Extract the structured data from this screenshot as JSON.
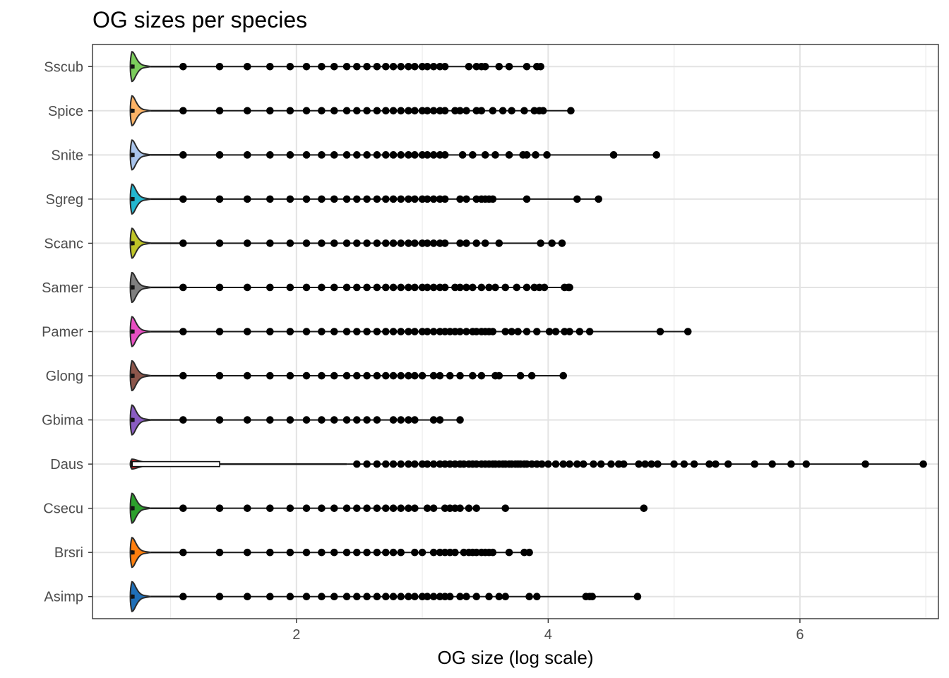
{
  "chart_data": {
    "type": "violin-boxplot",
    "title": "OG sizes per species",
    "xlabel": "OG size (log scale)",
    "ylabel": "",
    "xlim": [
      0.38,
      7.1
    ],
    "x_ticks": [
      2,
      4,
      6
    ],
    "x_tick_labels": [
      "2",
      "4",
      "6"
    ],
    "grid": true,
    "legend": "none",
    "categories": [
      "Sscub",
      "Spice",
      "Snite",
      "Sgreg",
      "Scanc",
      "Samer",
      "Pamer",
      "Glong",
      "Gbima",
      "Daus",
      "Csecu",
      "Brsri",
      "Asimp"
    ],
    "series": [
      {
        "name": "Sscub",
        "color": "#7CCD5C",
        "box_q3": 0.69,
        "whisker_max": 1.1,
        "outliers": [
          1.1,
          1.39,
          1.61,
          1.79,
          1.95,
          2.08,
          2.2,
          2.3,
          2.4,
          2.48,
          2.56,
          2.64,
          2.71,
          2.77,
          2.83,
          2.89,
          2.94,
          3.0,
          3.04,
          3.09,
          3.14,
          3.18,
          3.37,
          3.43,
          3.47,
          3.5,
          3.61,
          3.69,
          3.83,
          3.91,
          3.94
        ]
      },
      {
        "name": "Spice",
        "color": "#FDB366",
        "box_q3": 0.69,
        "whisker_max": 1.1,
        "outliers": [
          1.1,
          1.39,
          1.61,
          1.79,
          1.95,
          2.08,
          2.2,
          2.3,
          2.4,
          2.48,
          2.56,
          2.64,
          2.71,
          2.77,
          2.83,
          2.89,
          2.94,
          3.0,
          3.04,
          3.09,
          3.14,
          3.18,
          3.26,
          3.3,
          3.35,
          3.43,
          3.47,
          3.56,
          3.64,
          3.71,
          3.81,
          3.89,
          3.93,
          3.96,
          4.18
        ]
      },
      {
        "name": "Snite",
        "color": "#A9C4EB",
        "box_q3": 0.69,
        "whisker_max": 1.1,
        "outliers": [
          1.1,
          1.39,
          1.61,
          1.79,
          1.95,
          2.08,
          2.2,
          2.3,
          2.4,
          2.48,
          2.56,
          2.64,
          2.71,
          2.77,
          2.83,
          2.89,
          2.94,
          3.0,
          3.04,
          3.09,
          3.14,
          3.18,
          3.32,
          3.4,
          3.5,
          3.58,
          3.69,
          3.8,
          3.83,
          3.9,
          3.99,
          4.52,
          4.86
        ]
      },
      {
        "name": "Sgreg",
        "color": "#23B7D0",
        "box_q3": 0.69,
        "whisker_max": 1.1,
        "outliers": [
          1.1,
          1.39,
          1.61,
          1.79,
          1.95,
          2.08,
          2.2,
          2.3,
          2.4,
          2.48,
          2.56,
          2.64,
          2.71,
          2.77,
          2.83,
          2.89,
          2.94,
          3.0,
          3.04,
          3.09,
          3.14,
          3.18,
          3.3,
          3.35,
          3.43,
          3.47,
          3.5,
          3.53,
          3.56,
          3.83,
          4.23,
          4.4
        ]
      },
      {
        "name": "Scanc",
        "color": "#BFC427",
        "box_q3": 0.69,
        "whisker_max": 1.1,
        "outliers": [
          1.1,
          1.39,
          1.61,
          1.79,
          1.95,
          2.08,
          2.2,
          2.3,
          2.4,
          2.48,
          2.56,
          2.64,
          2.71,
          2.77,
          2.83,
          2.89,
          2.94,
          3.0,
          3.04,
          3.09,
          3.14,
          3.18,
          3.3,
          3.35,
          3.43,
          3.5,
          3.61,
          3.94,
          4.03,
          4.11
        ]
      },
      {
        "name": "Samer",
        "color": "#7F7F7F",
        "box_q3": 0.69,
        "whisker_max": 1.1,
        "outliers": [
          1.1,
          1.39,
          1.61,
          1.79,
          1.95,
          2.08,
          2.2,
          2.3,
          2.4,
          2.48,
          2.56,
          2.64,
          2.71,
          2.77,
          2.83,
          2.89,
          2.94,
          3.0,
          3.04,
          3.09,
          3.14,
          3.18,
          3.26,
          3.3,
          3.35,
          3.4,
          3.47,
          3.53,
          3.58,
          3.66,
          3.75,
          3.83,
          3.89,
          3.93,
          3.97,
          4.13,
          4.16,
          4.17
        ]
      },
      {
        "name": "Pamer",
        "color": "#E84FC2",
        "box_q3": 0.69,
        "whisker_max": 1.1,
        "outliers": [
          1.1,
          1.39,
          1.61,
          1.79,
          1.95,
          2.08,
          2.2,
          2.3,
          2.4,
          2.48,
          2.56,
          2.64,
          2.71,
          2.77,
          2.83,
          2.89,
          2.94,
          3.0,
          3.04,
          3.09,
          3.14,
          3.18,
          3.22,
          3.26,
          3.3,
          3.35,
          3.4,
          3.43,
          3.47,
          3.5,
          3.53,
          3.56,
          3.66,
          3.71,
          3.76,
          3.83,
          3.91,
          4.01,
          4.06,
          4.13,
          4.17,
          4.25,
          4.33,
          4.89,
          5.11
        ]
      },
      {
        "name": "Glong",
        "color": "#8C564B",
        "box_q3": 0.69,
        "whisker_max": 1.1,
        "outliers": [
          1.1,
          1.39,
          1.61,
          1.79,
          1.95,
          2.08,
          2.2,
          2.3,
          2.4,
          2.48,
          2.56,
          2.64,
          2.71,
          2.77,
          2.83,
          2.89,
          2.94,
          3.0,
          3.09,
          3.14,
          3.22,
          3.3,
          3.4,
          3.47,
          3.58,
          3.61,
          3.78,
          3.87,
          4.12
        ]
      },
      {
        "name": "Gbima",
        "color": "#8A5CC2",
        "box_q3": 0.69,
        "whisker_max": 1.1,
        "outliers": [
          1.1,
          1.39,
          1.61,
          1.79,
          1.95,
          2.08,
          2.2,
          2.3,
          2.4,
          2.48,
          2.56,
          2.64,
          2.77,
          2.83,
          2.89,
          2.94,
          3.09,
          3.14,
          3.3
        ]
      },
      {
        "name": "Daus",
        "color": "#E0262A",
        "box_q3": 1.39,
        "whisker_max": 2.4,
        "outliers": [
          2.48,
          2.56,
          2.64,
          2.71,
          2.77,
          2.83,
          2.89,
          2.94,
          3.0,
          3.04,
          3.09,
          3.14,
          3.18,
          3.22,
          3.26,
          3.3,
          3.33,
          3.37,
          3.4,
          3.43,
          3.47,
          3.5,
          3.53,
          3.56,
          3.58,
          3.61,
          3.64,
          3.66,
          3.69,
          3.71,
          3.74,
          3.76,
          3.78,
          3.81,
          3.83,
          3.87,
          3.91,
          3.95,
          4.0,
          4.06,
          4.12,
          4.17,
          4.23,
          4.28,
          4.36,
          4.42,
          4.5,
          4.56,
          4.6,
          4.72,
          4.77,
          4.82,
          4.87,
          5.0,
          5.08,
          5.16,
          5.28,
          5.33,
          5.43,
          5.64,
          5.78,
          5.93,
          6.05,
          6.52,
          6.98
        ]
      },
      {
        "name": "Csecu",
        "color": "#2CA02C",
        "box_q3": 0.69,
        "whisker_max": 1.1,
        "outliers": [
          1.1,
          1.39,
          1.61,
          1.79,
          1.95,
          2.08,
          2.2,
          2.3,
          2.4,
          2.48,
          2.56,
          2.64,
          2.71,
          2.77,
          2.83,
          2.89,
          2.94,
          3.04,
          3.09,
          3.18,
          3.22,
          3.26,
          3.3,
          3.37,
          3.43,
          3.66,
          4.76
        ]
      },
      {
        "name": "Brsri",
        "color": "#FF7F0E",
        "box_q3": 0.69,
        "whisker_max": 1.1,
        "outliers": [
          1.1,
          1.39,
          1.61,
          1.79,
          1.95,
          2.08,
          2.2,
          2.3,
          2.4,
          2.48,
          2.56,
          2.64,
          2.71,
          2.77,
          2.83,
          2.94,
          3.0,
          3.09,
          3.14,
          3.18,
          3.22,
          3.26,
          3.33,
          3.37,
          3.4,
          3.43,
          3.47,
          3.5,
          3.53,
          3.56,
          3.69,
          3.81,
          3.85
        ]
      },
      {
        "name": "Asimp",
        "color": "#1F6FB8",
        "box_q3": 0.69,
        "whisker_max": 1.1,
        "outliers": [
          1.1,
          1.39,
          1.61,
          1.79,
          1.95,
          2.08,
          2.2,
          2.3,
          2.4,
          2.48,
          2.56,
          2.64,
          2.71,
          2.77,
          2.83,
          2.89,
          2.94,
          3.0,
          3.04,
          3.09,
          3.14,
          3.18,
          3.22,
          3.3,
          3.35,
          3.43,
          3.53,
          3.61,
          3.66,
          3.85,
          3.91,
          4.3,
          4.33,
          4.35,
          4.71
        ]
      }
    ]
  }
}
